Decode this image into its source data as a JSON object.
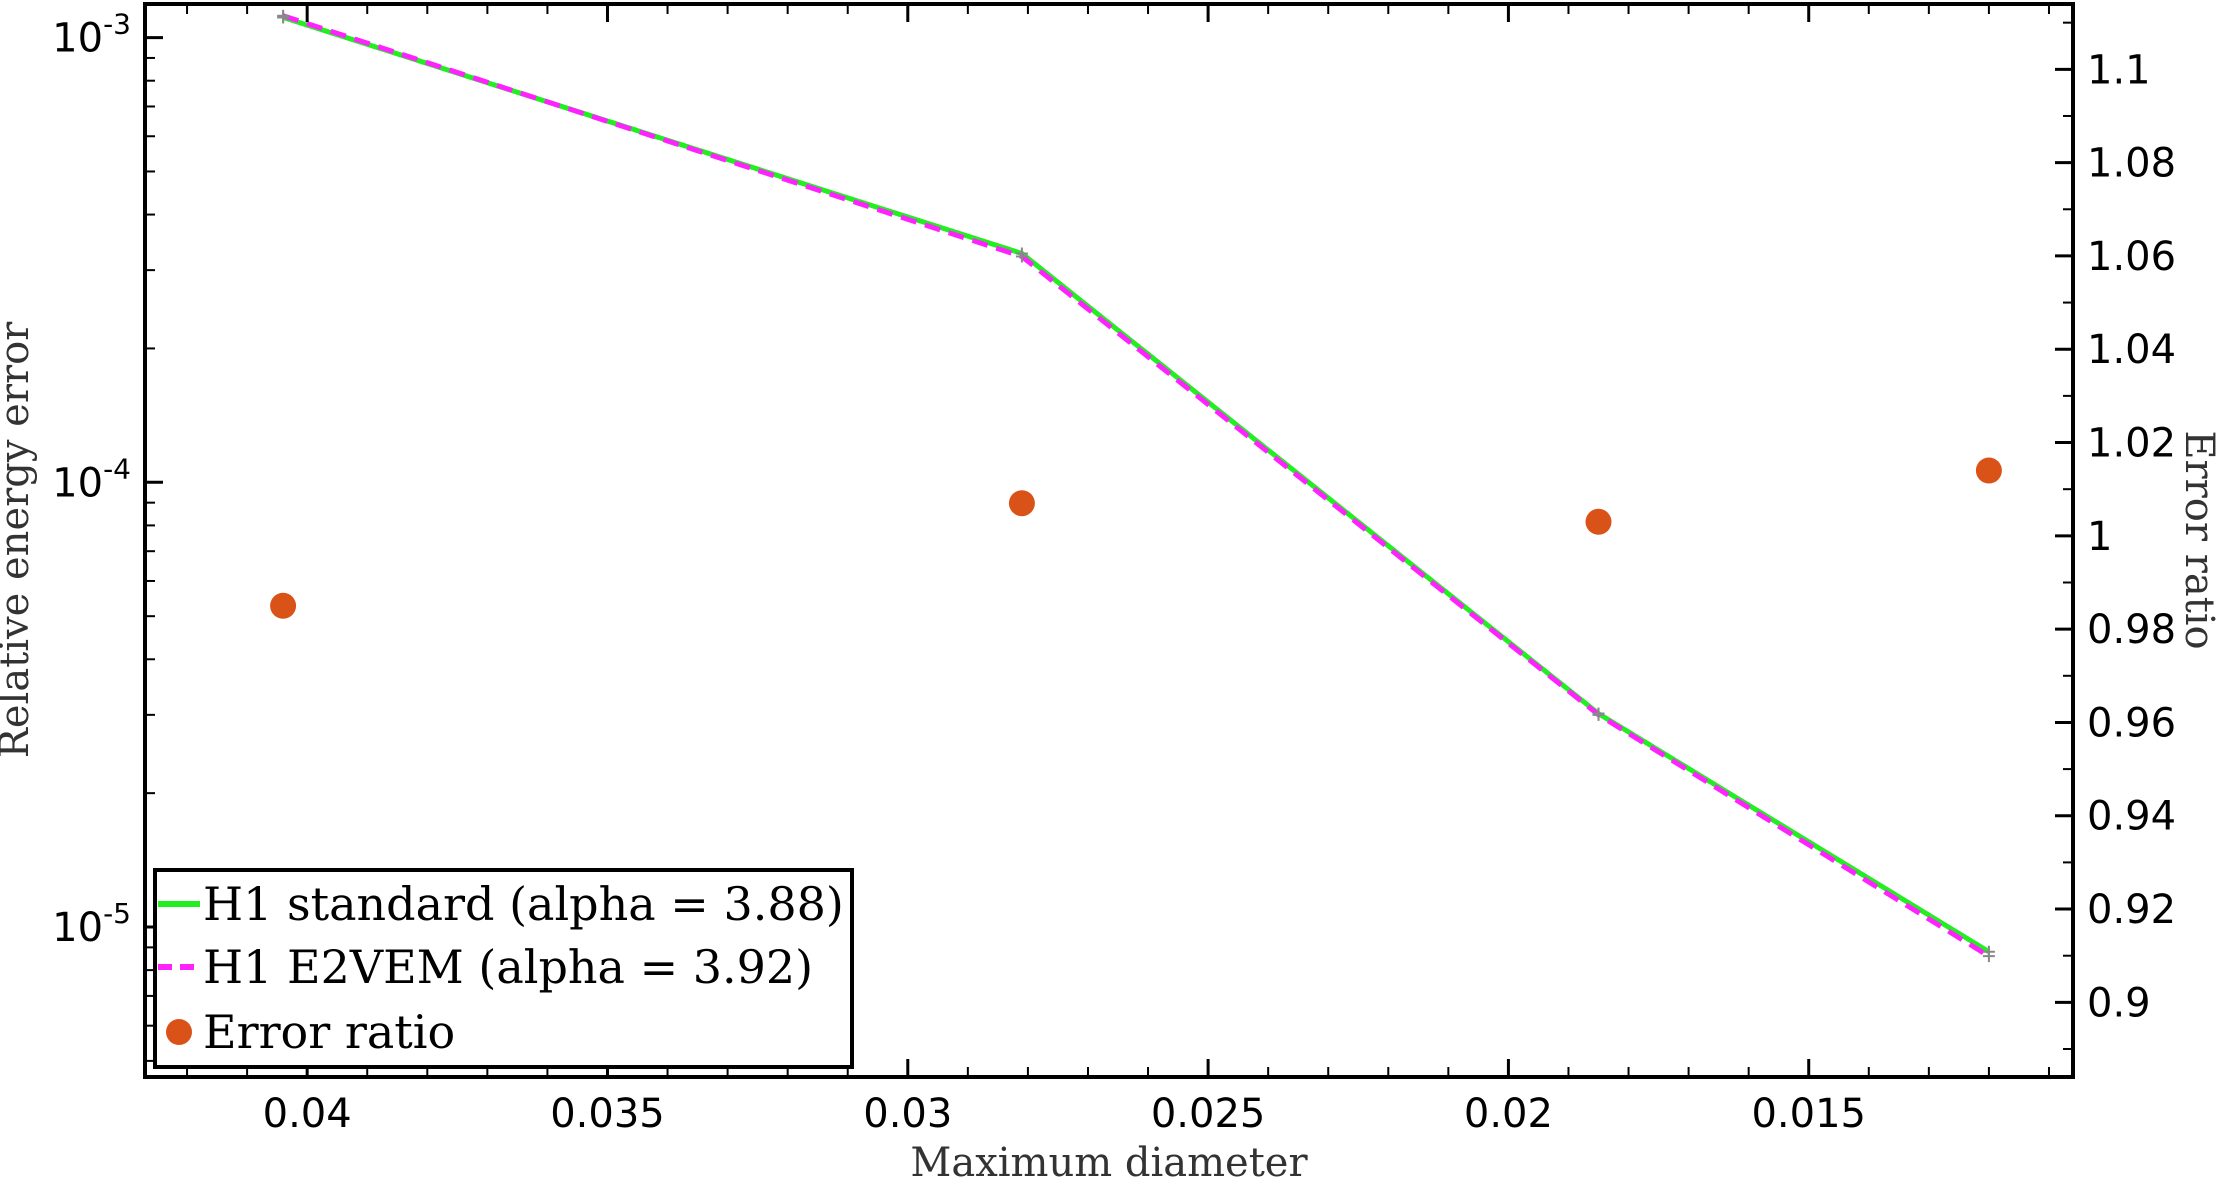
{
  "chart_data": {
    "type": "line",
    "xlabel": "Maximum diameter",
    "ylabel_left": "Relative energy error",
    "ylabel_right": "Error ratio",
    "x_reversed": true,
    "xlim": [
      0.0427,
      0.0106
    ],
    "ylim_left": [
      4.6e-06,
      0.00119
    ],
    "yscale_left": "log",
    "ylim_right": [
      0.884,
      1.114
    ],
    "x_ticks": [
      0.04,
      0.035,
      0.03,
      0.025,
      0.02,
      0.015
    ],
    "x_tick_labels": [
      "0.04",
      "0.035",
      "0.03",
      "0.025",
      "0.02",
      "0.015"
    ],
    "y_left_ticks": [
      {
        "value": 0.001,
        "base": "10",
        "exp": "-3"
      },
      {
        "value": 0.0001,
        "base": "10",
        "exp": "-4"
      },
      {
        "value": 1e-05,
        "base": "10",
        "exp": "-5"
      }
    ],
    "y_right_ticks": [
      0.9,
      0.92,
      0.94,
      0.96,
      0.98,
      1,
      1.02,
      1.04,
      1.06,
      1.08,
      1.1
    ],
    "y_right_tick_labels": [
      "0.9",
      "0.92",
      "0.94",
      "0.96",
      "0.98",
      "1",
      "1.02",
      "1.04",
      "1.06",
      "1.08",
      "1.1"
    ],
    "series": [
      {
        "name": "H1 standard (alpha = 3.88)",
        "axis": "left",
        "style": "solid",
        "color": "#22ee22",
        "x": [
          0.0404,
          0.0281,
          0.0185,
          0.012
        ],
        "y": [
          0.00111,
          0.000327,
          3.02e-05,
          8.8e-06
        ]
      },
      {
        "name": "H1 E2VEM (alpha = 3.92)",
        "axis": "left",
        "style": "dashed",
        "color": "#ff22ff",
        "x": [
          0.0404,
          0.0281,
          0.0185,
          0.012
        ],
        "y": [
          0.00112,
          0.000322,
          3e-05,
          8.6e-06
        ]
      },
      {
        "name": "Error ratio",
        "axis": "right",
        "style": "markers",
        "color": "#d95319",
        "x": [
          0.0404,
          0.0281,
          0.0185,
          0.012
        ],
        "y": [
          0.985,
          1.007,
          1.003,
          1.014
        ]
      }
    ],
    "legend": {
      "location": "bottom-left",
      "entries": [
        "H1 standard (alpha = 3.88)",
        "H1 E2VEM (alpha = 3.92)",
        "Error ratio"
      ]
    },
    "grid": false
  }
}
